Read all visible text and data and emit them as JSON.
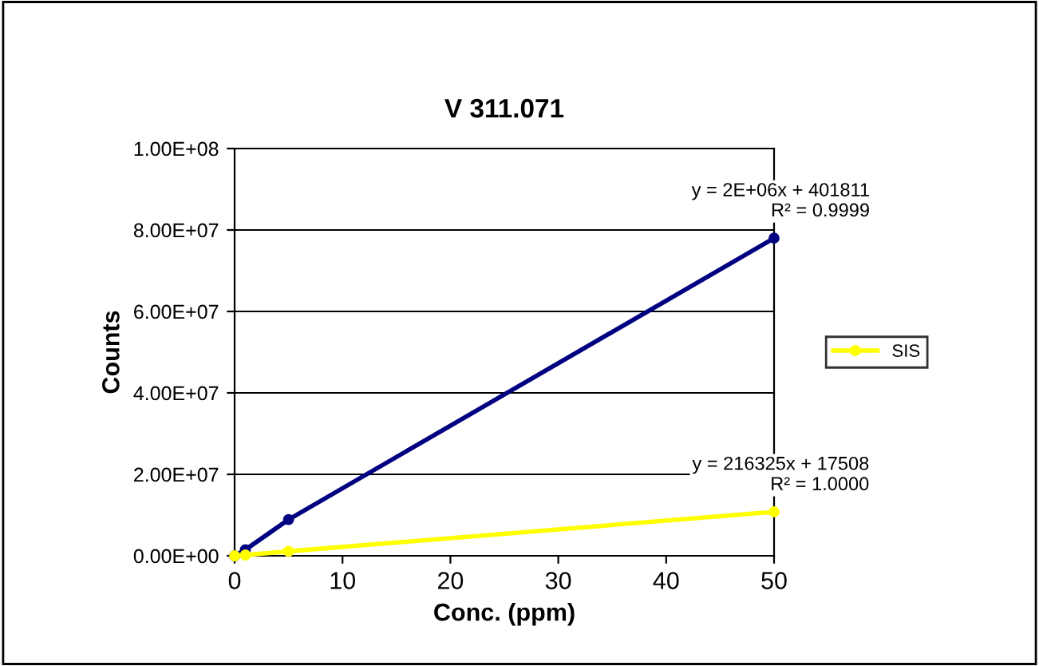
{
  "chart_data": {
    "type": "line",
    "title": "V 311.071",
    "xlabel": "Conc. (ppm)",
    "ylabel": "Counts",
    "series": [
      {
        "name": "SIS",
        "color": "#ffff00",
        "x": [
          0,
          1,
          5,
          50
        ],
        "values": [
          0,
          200000,
          1100000,
          10800000
        ]
      },
      {
        "color": "#000080",
        "x": [
          0,
          1,
          5,
          50
        ],
        "values": [
          0,
          1500000,
          8900000,
          78000000
        ]
      }
    ],
    "annotations": [
      {
        "text": "y = 2E+06x + 401811\nR² = 0.9999",
        "x": 50,
        "y": 78000000
      },
      {
        "text": "y = 216325x + 17508\nR² = 1.0000",
        "x": 50,
        "y": 10800000
      }
    ],
    "xlim": [
      0,
      50
    ],
    "xticks": [
      0,
      10,
      20,
      30,
      40,
      50
    ],
    "ylim": [
      0,
      100000000
    ],
    "yticks": [
      {
        "value": 0,
        "label": "0.00E+00"
      },
      {
        "value": 20000000,
        "label": "2.00E+07"
      },
      {
        "value": 40000000,
        "label": "4.00E+07"
      },
      {
        "value": 60000000,
        "label": "6.00E+07"
      },
      {
        "value": 80000000,
        "label": "8.00E+07"
      },
      {
        "value": 100000000,
        "label": "1.00E+08"
      }
    ],
    "grid": "y",
    "legend": "right",
    "marker": "circle",
    "line_style": "solid"
  }
}
